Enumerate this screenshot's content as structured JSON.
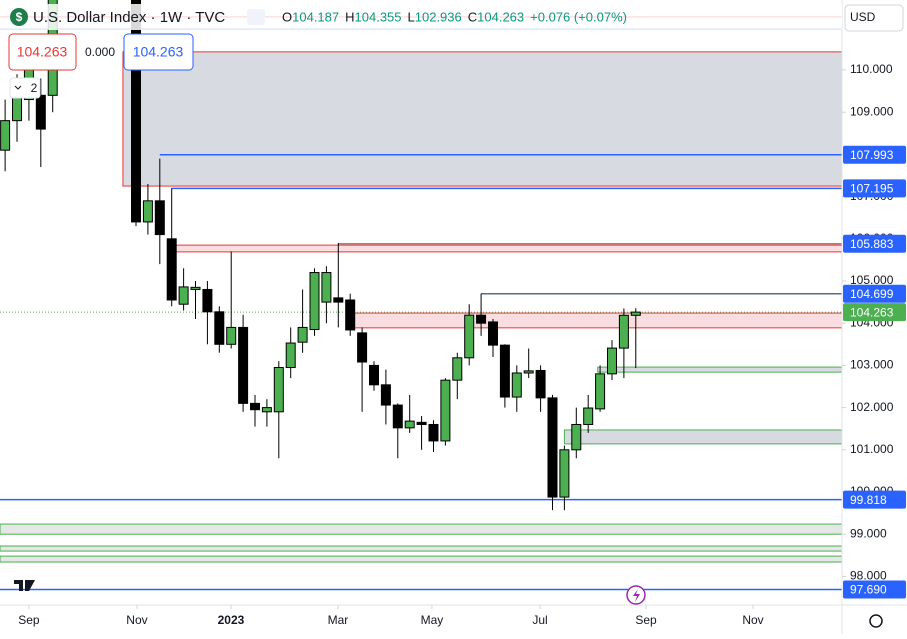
{
  "chart_data": {
    "type": "candlestick",
    "title": "U.S. Dollar Index · 1W · TVC",
    "legend": [
      {
        "k": "O",
        "v": "104.187"
      },
      {
        "k": "H",
        "v": "104.355"
      },
      {
        "k": "L",
        "v": "102.936"
      },
      {
        "k": "C",
        "v": "104.263"
      },
      {
        "k": "",
        "v": "+0.076 (+0.07%)"
      }
    ],
    "price_box": "104.263",
    "zero": "0.000",
    "price_box2": "104.263",
    "count": "2",
    "currency": "USD",
    "up_color": "#4caf50",
    "down_color": "#000000",
    "x": [
      -11,
      -10,
      -9,
      -8,
      -7,
      0,
      1,
      2,
      3,
      4,
      5,
      6,
      7,
      8,
      9,
      10,
      11,
      12,
      13,
      14,
      15,
      16,
      17,
      18,
      19,
      20,
      21,
      22,
      23,
      24,
      25,
      26,
      27,
      28,
      29,
      30,
      31,
      32,
      33,
      34,
      35,
      36,
      37,
      38,
      39,
      40,
      41,
      42
    ],
    "open": [
      108.1,
      108.8,
      109.3,
      109.4,
      109.4,
      111.7,
      106.4,
      106.9,
      106.0,
      104.45,
      104.8,
      104.8,
      104.27,
      103.5,
      103.9,
      102.1,
      101.9,
      101.9,
      102.95,
      103.55,
      103.85,
      104.5,
      104.6,
      104.55,
      103.77,
      103.0,
      102.54,
      102.06,
      101.52,
      101.65,
      101.6,
      101.21,
      102.65,
      103.18,
      104.19,
      104.03,
      103.48,
      102.25,
      102.82,
      102.88,
      102.23,
      99.88,
      101.0,
      101.6,
      101.97,
      102.8,
      103.41,
      104.187
    ],
    "high": [
      109.3,
      109.9,
      110.8,
      109.8,
      111.7,
      111.7,
      107.3,
      107.9,
      107.2,
      105.3,
      105.0,
      105.0,
      104.4,
      105.7,
      104.2,
      102.3,
      102.2,
      103.1,
      103.9,
      104.8,
      105.3,
      105.35,
      105.9,
      104.7,
      103.9,
      103.1,
      102.9,
      102.1,
      102.3,
      101.8,
      101.7,
      102.7,
      103.3,
      104.45,
      104.7,
      104.1,
      103.5,
      103.0,
      103.4,
      103.0,
      102.3,
      101.1,
      102.0,
      102.3,
      103.0,
      103.6,
      104.35,
      104.355
    ],
    "low": [
      107.6,
      108.3,
      108.8,
      107.7,
      109.0,
      106.3,
      106.1,
      105.4,
      104.4,
      104.3,
      104.1,
      103.5,
      103.3,
      103.4,
      101.9,
      101.55,
      101.55,
      100.8,
      102.7,
      103.3,
      103.7,
      104.0,
      103.9,
      103.7,
      101.9,
      102.4,
      101.6,
      100.8,
      101.4,
      101.0,
      100.95,
      101.1,
      102.2,
      103.0,
      103.7,
      103.2,
      102.0,
      101.9,
      102.7,
      101.9,
      99.57,
      99.57,
      100.8,
      101.4,
      101.9,
      102.65,
      102.7,
      102.936
    ],
    "close": [
      108.8,
      109.4,
      110.4,
      108.6,
      111.7,
      106.4,
      106.9,
      106.1,
      104.55,
      104.86,
      104.85,
      104.27,
      103.5,
      103.9,
      102.1,
      101.95,
      102.0,
      102.95,
      103.53,
      103.9,
      105.2,
      105.2,
      104.5,
      103.84,
      103.08,
      102.54,
      102.06,
      101.52,
      101.68,
      101.6,
      101.21,
      102.65,
      103.18,
      104.19,
      104.0,
      103.48,
      102.25,
      102.82,
      102.87,
      102.23,
      99.88,
      101.0,
      101.6,
      101.99,
      102.8,
      103.41,
      104.187,
      104.263
    ],
    "xlim": [
      -11.43,
      59.33
    ],
    "ylim": [
      97.322,
      111.659
    ],
    "xticks": [
      {
        "value": -9,
        "label": "Sep"
      },
      {
        "value": 0.08,
        "label": "Nov"
      },
      {
        "value": 7.98,
        "label": "2023"
      },
      {
        "value": 16.97,
        "label": "Mar"
      },
      {
        "value": 24.87,
        "label": "May"
      },
      {
        "value": 33.95,
        "label": "Jul"
      },
      {
        "value": 42.86,
        "label": "Sep"
      },
      {
        "value": 51.85,
        "label": "Nov"
      }
    ],
    "yticks": [
      {
        "value": 110,
        "label": "110.000"
      },
      {
        "value": 109,
        "label": "109.000"
      },
      {
        "value": 108,
        "label": "108.000"
      },
      {
        "value": 107,
        "label": "107.000"
      },
      {
        "value": 106,
        "label": "106.000"
      },
      {
        "value": 105,
        "label": "105.000"
      },
      {
        "value": 104,
        "label": "104.000"
      },
      {
        "value": 103,
        "label": "103.000"
      },
      {
        "value": 102,
        "label": "102.000"
      },
      {
        "value": 101,
        "label": "101.000"
      },
      {
        "value": 100,
        "label": "100.000"
      },
      {
        "value": 99,
        "label": "99.000"
      },
      {
        "value": 98,
        "label": "98.000"
      }
    ],
    "zones": [
      {
        "low": 107.25,
        "high": 110.43,
        "start": -1.1,
        "fill": "#d1d4dc",
        "stroke": "#e53935"
      },
      {
        "low": 105.69,
        "high": 105.85,
        "start": 3.2,
        "fill": "#f8d7da",
        "stroke": "#e53935"
      },
      {
        "low": 103.89,
        "high": 104.24,
        "start": 18,
        "fill": "#f8d7da",
        "stroke": "#e53935"
      },
      {
        "low": 102.84,
        "high": 102.96,
        "start": 38.8,
        "fill": "#d1d4dc",
        "stroke": "#4caf50"
      },
      {
        "low": 101.14,
        "high": 101.47,
        "start": 36,
        "fill": "#d1d4dc",
        "stroke": "#4caf50"
      },
      {
        "low": 99.0,
        "high": 99.24,
        "start": -11.43,
        "fill": "#dfe3e0",
        "stroke": "#4caf50"
      },
      {
        "low": 98.6,
        "high": 98.72,
        "start": -11.43,
        "fill": "#dfe3e0",
        "stroke": "#4caf50"
      },
      {
        "low": 98.34,
        "high": 98.48,
        "start": -11.43,
        "fill": "#dfe3e0",
        "stroke": "#4caf50"
      }
    ],
    "levels": [
      {
        "value": 111.26,
        "start": -11.43,
        "color": "#e53935"
      },
      {
        "value": 110.97,
        "start": -11.43,
        "color": "#2962ff"
      },
      {
        "value": 107.993,
        "label": "107.993",
        "start": 2,
        "color": "#2962ff"
      },
      {
        "value": 107.195,
        "label": "107.195",
        "start": 3,
        "color": "#2962ff"
      },
      {
        "value": 105.883,
        "label": "105.883",
        "start": 17,
        "color": "#b07a86"
      },
      {
        "value": 104.699,
        "label": "104.699",
        "start": 29,
        "color": "#5b6b8c"
      },
      {
        "value": 104.263,
        "label": "104.263",
        "start": -11.43,
        "color": "#4caf50",
        "dash": true
      },
      {
        "value": 99.818,
        "label": "99.818",
        "start": -11.43,
        "color": "#2962ff"
      },
      {
        "value": 97.69,
        "label": "97.690",
        "start": -11.43,
        "color": "#2962ff"
      }
    ]
  }
}
